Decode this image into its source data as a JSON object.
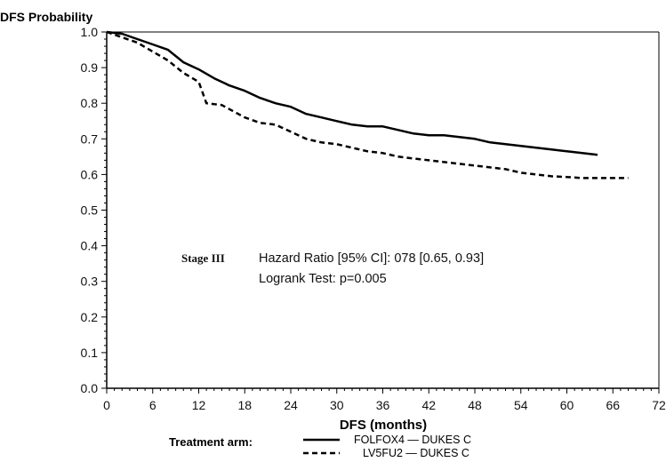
{
  "chart_data": {
    "type": "line",
    "ylabel": "DFS Probability",
    "xlabel": "DFS (months)",
    "xlim": [
      0,
      72
    ],
    "ylim": [
      0,
      1.0
    ],
    "x_ticks": [
      "0",
      "6",
      "12",
      "18",
      "24",
      "30",
      "36",
      "42",
      "48",
      "54",
      "60",
      "66",
      "72"
    ],
    "y_ticks": [
      "0.0",
      "0.1",
      "0.2",
      "0.3",
      "0.4",
      "0.5",
      "0.6",
      "0.7",
      "0.8",
      "0.9",
      "1.0"
    ],
    "grid": false,
    "series": [
      {
        "name": "FOLFOX4 — DUKES C",
        "style": "solid",
        "color": "#000000",
        "points": [
          [
            0,
            1.0
          ],
          [
            2,
            0.995
          ],
          [
            4,
            0.98
          ],
          [
            6,
            0.965
          ],
          [
            8,
            0.95
          ],
          [
            10,
            0.915
          ],
          [
            12,
            0.895
          ],
          [
            14,
            0.87
          ],
          [
            16,
            0.85
          ],
          [
            18,
            0.835
          ],
          [
            20,
            0.815
          ],
          [
            22,
            0.8
          ],
          [
            24,
            0.79
          ],
          [
            26,
            0.77
          ],
          [
            28,
            0.76
          ],
          [
            30,
            0.75
          ],
          [
            32,
            0.74
          ],
          [
            34,
            0.735
          ],
          [
            36,
            0.735
          ],
          [
            38,
            0.725
          ],
          [
            40,
            0.715
          ],
          [
            42,
            0.71
          ],
          [
            44,
            0.71
          ],
          [
            46,
            0.705
          ],
          [
            48,
            0.7
          ],
          [
            50,
            0.69
          ],
          [
            52,
            0.685
          ],
          [
            54,
            0.68
          ],
          [
            56,
            0.675
          ],
          [
            58,
            0.67
          ],
          [
            60,
            0.665
          ],
          [
            62,
            0.66
          ],
          [
            64,
            0.655
          ]
        ]
      },
      {
        "name": "LV5FU2 — DUKES C",
        "style": "dashed",
        "color": "#000000",
        "points": [
          [
            0,
            1.0
          ],
          [
            2,
            0.985
          ],
          [
            4,
            0.97
          ],
          [
            6,
            0.945
          ],
          [
            8,
            0.92
          ],
          [
            10,
            0.885
          ],
          [
            12,
            0.86
          ],
          [
            13,
            0.8
          ],
          [
            15,
            0.795
          ],
          [
            18,
            0.76
          ],
          [
            20,
            0.745
          ],
          [
            22,
            0.74
          ],
          [
            24,
            0.72
          ],
          [
            26,
            0.7
          ],
          [
            28,
            0.69
          ],
          [
            30,
            0.685
          ],
          [
            32,
            0.675
          ],
          [
            34,
            0.665
          ],
          [
            36,
            0.66
          ],
          [
            38,
            0.65
          ],
          [
            40,
            0.645
          ],
          [
            42,
            0.64
          ],
          [
            44,
            0.635
          ],
          [
            46,
            0.63
          ],
          [
            48,
            0.625
          ],
          [
            50,
            0.62
          ],
          [
            52,
            0.615
          ],
          [
            54,
            0.605
          ],
          [
            56,
            0.6
          ],
          [
            58,
            0.595
          ],
          [
            60,
            0.593
          ],
          [
            62,
            0.59
          ],
          [
            64,
            0.59
          ],
          [
            66,
            0.59
          ],
          [
            68,
            0.59
          ]
        ]
      }
    ],
    "annotations": {
      "stage": "Stage III",
      "hazard": "Hazard Ratio [95% CI]: 078 [0.65, 0.93]",
      "logrank": "Logrank Test:  p=0.005"
    },
    "legend": {
      "title": "Treatment arm:",
      "placement": "bottom",
      "items": [
        "FOLFOX4 — DUKES C",
        "LV5FU2 — DUKES C"
      ]
    }
  }
}
